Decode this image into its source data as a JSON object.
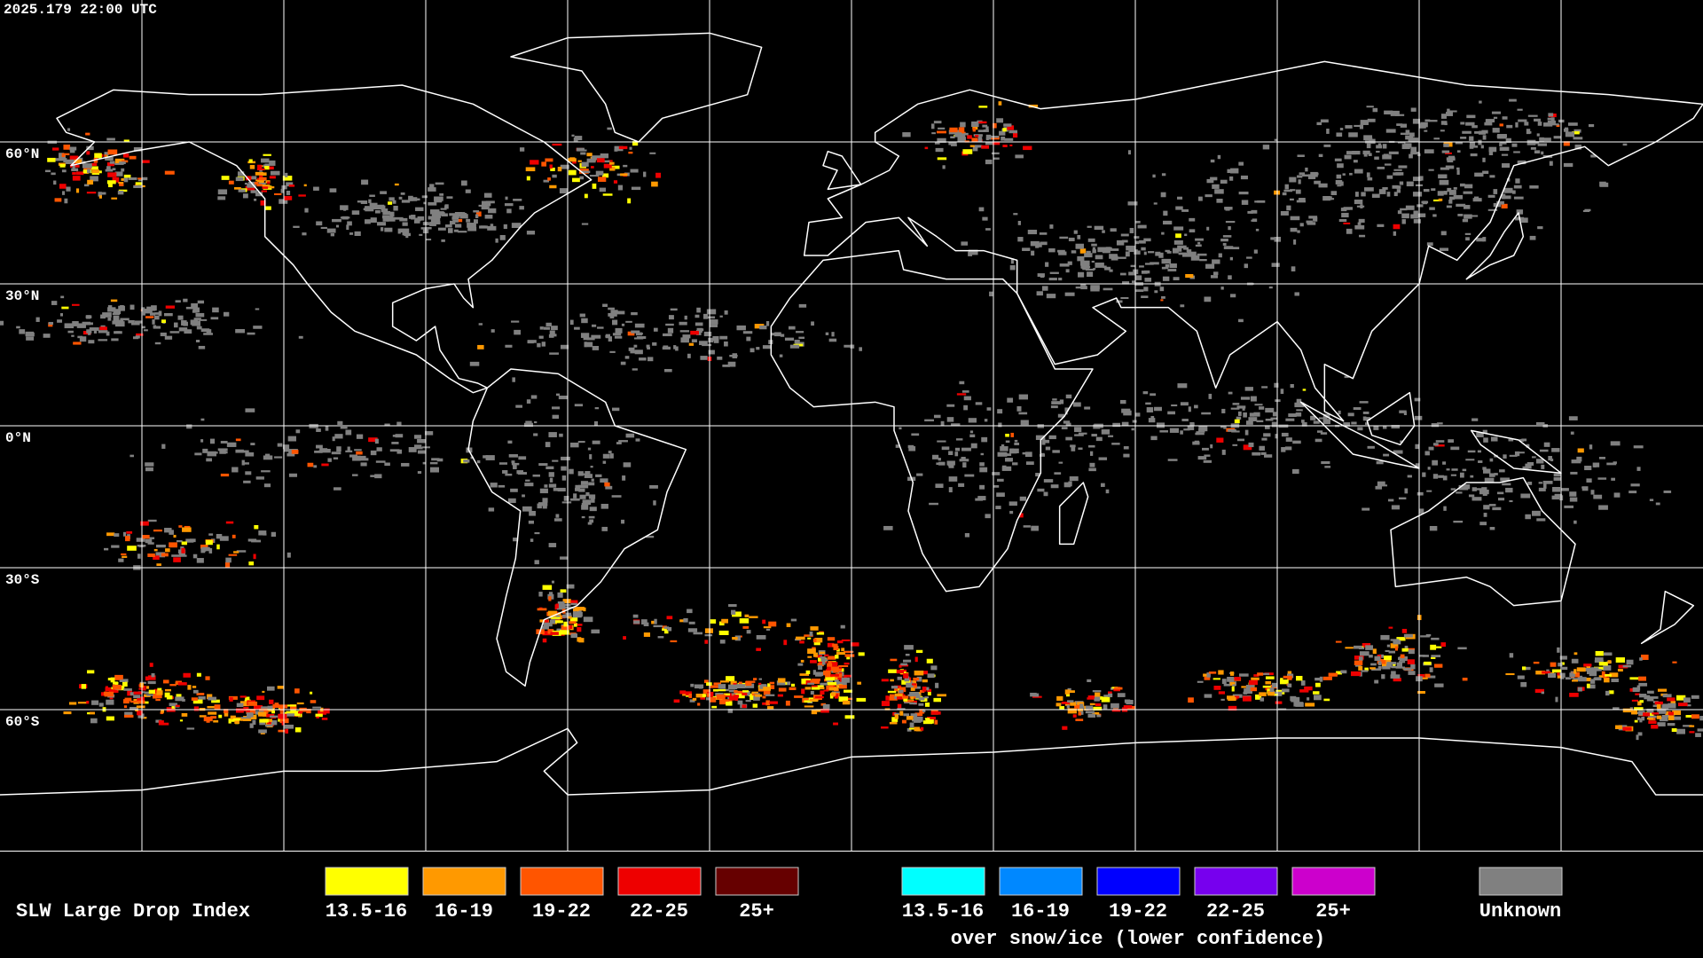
{
  "header": {
    "timestamp": "2025.179 22:00 UTC"
  },
  "map": {
    "lat_labels": [
      "60°N",
      "30°N",
      "0°N",
      "30°S",
      "60°S"
    ]
  },
  "legend": {
    "title": "SLW Large Drop Index",
    "groups": [
      {
        "items": [
          {
            "label": "13.5-16",
            "color": "#ffff00"
          },
          {
            "label": "16-19",
            "color": "#ff9900"
          },
          {
            "label": "19-22",
            "color": "#ff5500"
          },
          {
            "label": "22-25",
            "color": "#ee0000"
          },
          {
            "label": "25+",
            "color": "#660000"
          }
        ]
      },
      {
        "items": [
          {
            "label": "13.5-16",
            "color": "#00ffff"
          },
          {
            "label": "16-19",
            "color": "#0088ff"
          },
          {
            "label": "19-22",
            "color": "#0000ff"
          },
          {
            "label": "22-25",
            "color": "#7700ee"
          },
          {
            "label": "25+",
            "color": "#cc00cc"
          }
        ],
        "caption": "over snow/ice (lower confidence)"
      },
      {
        "items": [
          {
            "label": "Unknown",
            "color": "#808080"
          }
        ]
      }
    ]
  }
}
